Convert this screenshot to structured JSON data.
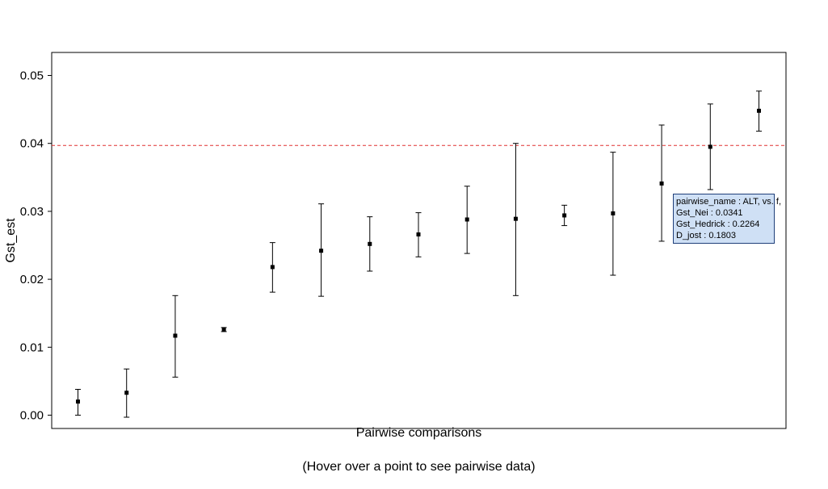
{
  "chart_data": {
    "type": "scatter",
    "ylabel": "Gst_est",
    "xlabel": "Pairwise comparisons",
    "caption": "(Hover over a point to see pairwise data)",
    "ylim": [
      -0.0015,
      0.0535
    ],
    "y_ticks": [
      "0.00",
      "0.01",
      "0.02",
      "0.03",
      "0.04",
      "0.05"
    ],
    "reference_line": {
      "y": 0.0397,
      "color": "#e03030",
      "style": "dashed"
    },
    "points": [
      {
        "y": 0.002,
        "lo": 0.0,
        "hi": 0.0038
      },
      {
        "y": 0.0033,
        "lo": -0.0003,
        "hi": 0.0068
      },
      {
        "y": 0.0117,
        "lo": 0.0056,
        "hi": 0.0176
      },
      {
        "y": 0.0126,
        "lo": 0.0123,
        "hi": 0.0129
      },
      {
        "y": 0.0218,
        "lo": 0.0181,
        "hi": 0.0254
      },
      {
        "y": 0.0242,
        "lo": 0.0175,
        "hi": 0.0311
      },
      {
        "y": 0.0252,
        "lo": 0.0212,
        "hi": 0.0292
      },
      {
        "y": 0.0266,
        "lo": 0.0233,
        "hi": 0.0298
      },
      {
        "y": 0.0288,
        "lo": 0.0238,
        "hi": 0.0337
      },
      {
        "y": 0.0289,
        "lo": 0.0176,
        "hi": 0.04
      },
      {
        "y": 0.0294,
        "lo": 0.0279,
        "hi": 0.0309
      },
      {
        "y": 0.0297,
        "lo": 0.0206,
        "hi": 0.0387
      },
      {
        "y": 0.0341,
        "lo": 0.0256,
        "hi": 0.0427
      },
      {
        "y": 0.0395,
        "lo": 0.0332,
        "hi": 0.0458
      },
      {
        "y": 0.0448,
        "lo": 0.0418,
        "hi": 0.0477
      }
    ]
  },
  "tooltip": {
    "line1": "pairwise_name  : ALT, vs. f,",
    "line2": "Gst_Nei  :  0.0341",
    "line3": "Gst_Hedrick  :  0.2264",
    "line4": "D_jost  :  0.1803"
  },
  "colors": {
    "axis": "#000000",
    "point": "#000000",
    "refline": "#e03030"
  }
}
